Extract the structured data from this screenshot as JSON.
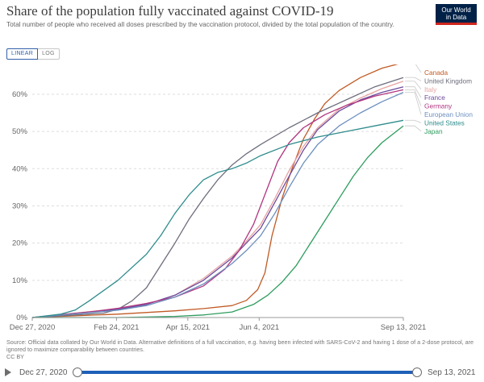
{
  "header": {
    "title": "Share of the population fully vaccinated against COVID-19",
    "subtitle": "Total number of people who received all doses prescribed by the vaccination protocol, divided by the total population of the country.",
    "logo_line1": "Our World",
    "logo_line2": "in Data"
  },
  "controls": {
    "linear_label": "LINEAR",
    "log_label": "LOG"
  },
  "footer": {
    "source": "Source: Official data collated by Our World in Data. Alternative definitions of a full vaccination, e.g. having been infected with SARS-CoV-2 and having 1 dose of a 2-dose protocol, are ignored to maximize comparability between countries.",
    "license": "CC BY"
  },
  "timeline": {
    "start_label": "Dec 27, 2020",
    "end_label": "Sep 13, 2021"
  },
  "colors": {
    "Canada": "#c15a25",
    "United Kingdom": "#6e6e7e",
    "Italy": "#e7a2a2",
    "France": "#6a4a9c",
    "Germany": "#b13580",
    "European Union": "#6d8fbf",
    "United States": "#2f8c8c",
    "Japan": "#2e9c5e",
    "grid": "#dddddd",
    "timeline": "#1e60b8",
    "logo_bg": "#002147",
    "logo_accent": "#ce261e"
  },
  "chart_data": {
    "type": "line",
    "title": "Share of the population fully vaccinated against COVID-19",
    "xlabel": "",
    "ylabel": "",
    "x_unit": "days since Dec 27, 2020",
    "x_ticks": [
      {
        "day": 0,
        "label": "Dec 27, 2020"
      },
      {
        "day": 59,
        "label": "Feb 24, 2021"
      },
      {
        "day": 109,
        "label": "Apr 15, 2021"
      },
      {
        "day": 159,
        "label": "Jun 4, 2021"
      },
      {
        "day": 260,
        "label": "Sep 13, 2021"
      }
    ],
    "y_ticks": [
      "0%",
      "10%",
      "20%",
      "30%",
      "40%",
      "50%",
      "60%"
    ],
    "xlim": [
      0,
      260
    ],
    "ylim": [
      0,
      68
    ],
    "grid": true,
    "legend": "right, at line ends",
    "series": [
      {
        "name": "Canada",
        "points": [
          [
            0,
            0
          ],
          [
            60,
            0.9
          ],
          [
            100,
            1.8
          ],
          [
            120,
            2.4
          ],
          [
            140,
            3.2
          ],
          [
            150,
            4.6
          ],
          [
            158,
            7.5
          ],
          [
            163,
            12
          ],
          [
            168,
            22
          ],
          [
            175,
            32
          ],
          [
            182,
            40
          ],
          [
            190,
            48
          ],
          [
            198,
            53.5
          ],
          [
            205,
            57.5
          ],
          [
            215,
            61
          ],
          [
            230,
            64.5
          ],
          [
            245,
            67
          ],
          [
            260,
            68.5
          ]
        ]
      },
      {
        "name": "United Kingdom",
        "points": [
          [
            0,
            0
          ],
          [
            30,
            0.7
          ],
          [
            50,
            1.2
          ],
          [
            60,
            2.2
          ],
          [
            70,
            4.5
          ],
          [
            80,
            8
          ],
          [
            90,
            14
          ],
          [
            100,
            20
          ],
          [
            110,
            26.5
          ],
          [
            120,
            32
          ],
          [
            130,
            37
          ],
          [
            140,
            41
          ],
          [
            150,
            44
          ],
          [
            160,
            46.5
          ],
          [
            180,
            51
          ],
          [
            200,
            55
          ],
          [
            220,
            58.5
          ],
          [
            240,
            62
          ],
          [
            260,
            64.5
          ]
        ]
      },
      {
        "name": "Italy",
        "points": [
          [
            0,
            0
          ],
          [
            40,
            1.6
          ],
          [
            60,
            2.3
          ],
          [
            80,
            3.5
          ],
          [
            100,
            6
          ],
          [
            120,
            10.5
          ],
          [
            140,
            16.5
          ],
          [
            150,
            20.5
          ],
          [
            160,
            25
          ],
          [
            170,
            32
          ],
          [
            180,
            39.5
          ],
          [
            190,
            46
          ],
          [
            200,
            51
          ],
          [
            215,
            56
          ],
          [
            230,
            59
          ],
          [
            245,
            61.5
          ],
          [
            260,
            63.5
          ]
        ]
      },
      {
        "name": "France",
        "points": [
          [
            0,
            0
          ],
          [
            40,
            1.5
          ],
          [
            60,
            2.2
          ],
          [
            80,
            3.5
          ],
          [
            100,
            6
          ],
          [
            120,
            10
          ],
          [
            140,
            16
          ],
          [
            150,
            20
          ],
          [
            160,
            24
          ],
          [
            170,
            31
          ],
          [
            180,
            38
          ],
          [
            190,
            45
          ],
          [
            200,
            50.5
          ],
          [
            215,
            55.5
          ],
          [
            230,
            58.5
          ],
          [
            245,
            60.5
          ],
          [
            260,
            62
          ]
        ]
      },
      {
        "name": "Germany",
        "points": [
          [
            0,
            0
          ],
          [
            40,
            1.5
          ],
          [
            60,
            2.5
          ],
          [
            80,
            3.8
          ],
          [
            100,
            5.5
          ],
          [
            120,
            8.5
          ],
          [
            135,
            13
          ],
          [
            145,
            18
          ],
          [
            155,
            25
          ],
          [
            165,
            35
          ],
          [
            172,
            42
          ],
          [
            180,
            47
          ],
          [
            190,
            51
          ],
          [
            205,
            54.5
          ],
          [
            220,
            57
          ],
          [
            240,
            59.5
          ],
          [
            260,
            61.2
          ]
        ]
      },
      {
        "name": "European Union",
        "points": [
          [
            0,
            0
          ],
          [
            40,
            1.3
          ],
          [
            60,
            2
          ],
          [
            80,
            3.2
          ],
          [
            100,
            5.5
          ],
          [
            120,
            9
          ],
          [
            140,
            14.5
          ],
          [
            150,
            18
          ],
          [
            160,
            22
          ],
          [
            170,
            28
          ],
          [
            180,
            35
          ],
          [
            190,
            41.5
          ],
          [
            200,
            46.5
          ],
          [
            215,
            51.5
          ],
          [
            230,
            55
          ],
          [
            245,
            58
          ],
          [
            260,
            60.5
          ]
        ]
      },
      {
        "name": "United States",
        "points": [
          [
            0,
            0
          ],
          [
            20,
            0.9
          ],
          [
            30,
            2
          ],
          [
            40,
            4.5
          ],
          [
            60,
            10
          ],
          [
            80,
            17
          ],
          [
            90,
            22
          ],
          [
            100,
            28
          ],
          [
            110,
            33
          ],
          [
            120,
            37
          ],
          [
            130,
            39
          ],
          [
            140,
            40
          ],
          [
            150,
            41.5
          ],
          [
            160,
            43.5
          ],
          [
            180,
            46.5
          ],
          [
            200,
            48.5
          ],
          [
            220,
            50
          ],
          [
            240,
            51.5
          ],
          [
            260,
            53
          ]
        ]
      },
      {
        "name": "Japan",
        "points": [
          [
            0,
            0
          ],
          [
            60,
            0
          ],
          [
            100,
            0.3
          ],
          [
            120,
            0.7
          ],
          [
            140,
            1.5
          ],
          [
            155,
            3.5
          ],
          [
            165,
            6
          ],
          [
            175,
            9.5
          ],
          [
            185,
            14
          ],
          [
            195,
            20
          ],
          [
            205,
            26
          ],
          [
            215,
            32
          ],
          [
            225,
            38
          ],
          [
            235,
            43
          ],
          [
            245,
            47
          ],
          [
            255,
            50
          ],
          [
            260,
            51.5
          ]
        ]
      }
    ],
    "legend_order": [
      "Canada",
      "United Kingdom",
      "Italy",
      "France",
      "Germany",
      "European Union",
      "United States",
      "Japan"
    ]
  }
}
